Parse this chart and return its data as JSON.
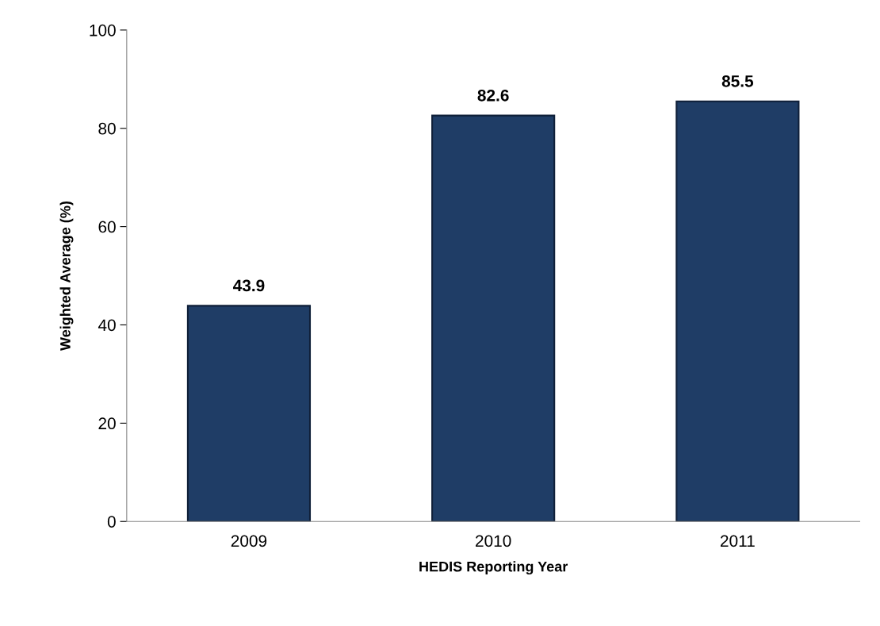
{
  "chart_data": {
    "type": "bar",
    "xlabel": "HEDIS Reporting Year",
    "ylabel": "Weighted Average (%)",
    "categories": [
      "2009",
      "2010",
      "2011"
    ],
    "values": [
      43.9,
      82.6,
      85.5
    ],
    "color": "#1f3d66",
    "ylim": [
      0,
      100
    ],
    "yticks": [
      0,
      20,
      40,
      60,
      80,
      100
    ],
    "data_labels": true,
    "grid": false,
    "legend": false
  }
}
